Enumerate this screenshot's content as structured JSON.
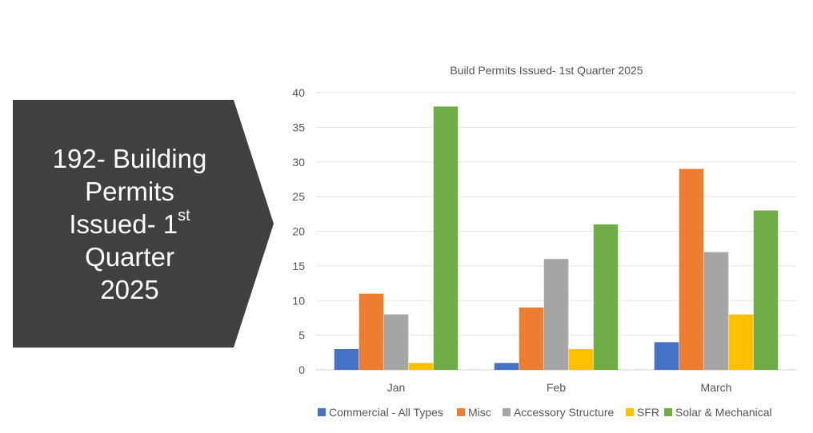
{
  "callout": {
    "line1": "192- Building",
    "line2": "Permits",
    "line3": "Issued- 1",
    "line3_sup": "st",
    "line4": "Quarter",
    "line5": "2025",
    "color": "#404040"
  },
  "chart_data": {
    "type": "bar",
    "title": "Build Permits Issued- 1st Quarter 2025",
    "categories": [
      "Jan",
      "Feb",
      "March"
    ],
    "series": [
      {
        "name": "Commercial - All Types",
        "color": "#4472C4",
        "values": [
          3,
          1,
          4
        ]
      },
      {
        "name": "Misc",
        "color": "#ED7D31",
        "values": [
          11,
          9,
          29
        ]
      },
      {
        "name": "Accessory Structure",
        "color": "#A5A5A5",
        "values": [
          8,
          16,
          17
        ]
      },
      {
        "name": "SFR",
        "color": "#FFC000",
        "values": [
          1,
          3,
          8
        ]
      },
      {
        "name": "Solar & Mechanical",
        "color": "#70AD47",
        "values": [
          38,
          21,
          23
        ]
      }
    ],
    "ylim": [
      0,
      40
    ],
    "yticks": [
      "0",
      "5",
      "10",
      "15",
      "20",
      "25",
      "30",
      "35",
      "40"
    ],
    "grid": true,
    "legend": "bottom"
  }
}
